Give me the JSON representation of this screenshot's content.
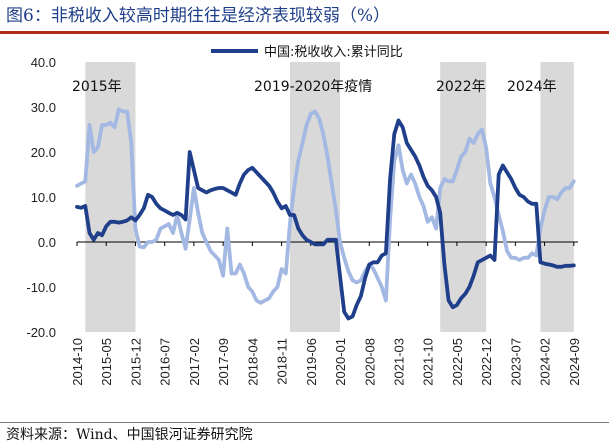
{
  "title": "图6：非税收入较高时期往往是经济表现较弱（%）",
  "source": "资料来源：Wind、中国银河证券研究院",
  "colors": {
    "title": "#1f3f8a",
    "title_rule": "#b02a20",
    "shade": "#d9d9d9",
    "dark_series": "#1f3f8a",
    "light_series": "#a3b8e2",
    "zero_line": "#000000"
  },
  "chart_data": {
    "type": "line",
    "ylim": [
      -20,
      40
    ],
    "yticks": [
      "-20.0",
      "-10.0",
      "0.0",
      "10.0",
      "20.0",
      "30.0",
      "40.0"
    ],
    "xlim": [
      "2014-10",
      "2024-10"
    ],
    "xticks": [
      "2014-10",
      "2015-05",
      "2015-12",
      "2016-07",
      "2017-02",
      "2017-09",
      "2018-04",
      "2018-11",
      "2019-06",
      "2020-01",
      "2020-08",
      "2021-03",
      "2021-10",
      "2022-05",
      "2022-12",
      "2023-07",
      "2024-02",
      "2024-09"
    ],
    "legend": {
      "position": "top",
      "entries": [
        "中国:税收收入:累计同比"
      ]
    },
    "shaded_periods": [
      {
        "label": "2015年",
        "start": "2014-12",
        "end": "2015-12"
      },
      {
        "label": "2019-2020年疫情",
        "start": "2019-01",
        "end": "2020-01"
      },
      {
        "label": "2022年",
        "start": "2022-01",
        "end": "2022-12"
      },
      {
        "label": "2024年",
        "start": "2024-01",
        "end": "2024-09"
      }
    ],
    "series": [
      {
        "name": "中国:税收收入:累计同比",
        "style": "dark-thick",
        "points": [
          [
            "2014-10",
            7.8
          ],
          [
            "2014-11",
            7.6
          ],
          [
            "2014-12",
            8.0
          ],
          [
            "2015-01",
            2.0
          ],
          [
            "2015-02",
            0.5
          ],
          [
            "2015-03",
            2.0
          ],
          [
            "2015-04",
            1.5
          ],
          [
            "2015-05",
            3.5
          ],
          [
            "2015-06",
            4.5
          ],
          [
            "2015-07",
            4.5
          ],
          [
            "2015-08",
            4.3
          ],
          [
            "2015-09",
            4.5
          ],
          [
            "2015-10",
            4.8
          ],
          [
            "2015-11",
            5.5
          ],
          [
            "2015-12",
            4.8
          ],
          [
            "2016-01",
            6.0
          ],
          [
            "2016-02",
            7.5
          ],
          [
            "2016-03",
            10.5
          ],
          [
            "2016-04",
            10.0
          ],
          [
            "2016-05",
            8.5
          ],
          [
            "2016-06",
            7.5
          ],
          [
            "2016-07",
            7.0
          ],
          [
            "2016-08",
            6.5
          ],
          [
            "2016-09",
            6.0
          ],
          [
            "2016-10",
            6.5
          ],
          [
            "2016-11",
            6.0
          ],
          [
            "2016-12",
            5.0
          ],
          [
            "2017-01",
            20.0
          ],
          [
            "2017-02",
            16.0
          ],
          [
            "2017-03",
            12.0
          ],
          [
            "2017-04",
            11.5
          ],
          [
            "2017-05",
            11.0
          ],
          [
            "2017-06",
            11.5
          ],
          [
            "2017-07",
            11.8
          ],
          [
            "2017-08",
            12.0
          ],
          [
            "2017-09",
            12.0
          ],
          [
            "2017-10",
            11.5
          ],
          [
            "2017-11",
            11.0
          ],
          [
            "2017-12",
            10.5
          ],
          [
            "2018-01",
            13.0
          ],
          [
            "2018-02",
            15.0
          ],
          [
            "2018-03",
            16.0
          ],
          [
            "2018-04",
            16.5
          ],
          [
            "2018-05",
            15.5
          ],
          [
            "2018-06",
            14.5
          ],
          [
            "2018-07",
            13.5
          ],
          [
            "2018-08",
            12.5
          ],
          [
            "2018-09",
            11.0
          ],
          [
            "2018-10",
            9.0
          ],
          [
            "2018-11",
            7.5
          ],
          [
            "2018-12",
            8.0
          ],
          [
            "2019-01",
            6.0
          ],
          [
            "2019-02",
            6.0
          ],
          [
            "2019-03",
            3.0
          ],
          [
            "2019-04",
            1.5
          ],
          [
            "2019-05",
            0.5
          ],
          [
            "2019-06",
            0.0
          ],
          [
            "2019-07",
            -0.5
          ],
          [
            "2019-08",
            -0.5
          ],
          [
            "2019-09",
            -0.5
          ],
          [
            "2019-10",
            0.5
          ],
          [
            "2019-11",
            0.5
          ],
          [
            "2019-12",
            0.5
          ],
          [
            "2020-01",
            -7.5
          ],
          [
            "2020-02",
            -15.5
          ],
          [
            "2020-03",
            -17.0
          ],
          [
            "2020-04",
            -16.5
          ],
          [
            "2020-05",
            -14.0
          ],
          [
            "2020-06",
            -12.0
          ],
          [
            "2020-07",
            -8.0
          ],
          [
            "2020-08",
            -5.0
          ],
          [
            "2020-09",
            -4.5
          ],
          [
            "2020-10",
            -4.5
          ],
          [
            "2020-11",
            -3.0
          ],
          [
            "2020-12",
            -2.5
          ],
          [
            "2021-01",
            14.0
          ],
          [
            "2021-02",
            24.0
          ],
          [
            "2021-03",
            27.0
          ],
          [
            "2021-04",
            25.5
          ],
          [
            "2021-05",
            22.0
          ],
          [
            "2021-06",
            20.5
          ],
          [
            "2021-07",
            19.0
          ],
          [
            "2021-08",
            17.0
          ],
          [
            "2021-09",
            14.5
          ],
          [
            "2021-10",
            12.5
          ],
          [
            "2021-11",
            11.5
          ],
          [
            "2021-12",
            10.0
          ],
          [
            "2022-01",
            6.5
          ],
          [
            "2022-02",
            -5.0
          ],
          [
            "2022-03",
            -13.0
          ],
          [
            "2022-04",
            -14.5
          ],
          [
            "2022-05",
            -14.0
          ],
          [
            "2022-06",
            -12.5
          ],
          [
            "2022-07",
            -11.5
          ],
          [
            "2022-08",
            -10.0
          ],
          [
            "2022-09",
            -7.5
          ],
          [
            "2022-10",
            -4.5
          ],
          [
            "2022-11",
            -4.0
          ],
          [
            "2022-12",
            -3.5
          ],
          [
            "2023-01",
            -3.0
          ],
          [
            "2023-02",
            -4.0
          ],
          [
            "2023-03",
            15.0
          ],
          [
            "2023-04",
            17.0
          ],
          [
            "2023-05",
            15.5
          ],
          [
            "2023-06",
            14.0
          ],
          [
            "2023-07",
            12.0
          ],
          [
            "2023-08",
            10.5
          ],
          [
            "2023-09",
            10.0
          ],
          [
            "2023-10",
            9.0
          ],
          [
            "2023-11",
            8.5
          ],
          [
            "2023-12",
            8.5
          ],
          [
            "2024-01",
            -4.5
          ],
          [
            "2024-02",
            -4.8
          ],
          [
            "2024-03",
            -5.0
          ],
          [
            "2024-04",
            -5.2
          ],
          [
            "2024-05",
            -5.5
          ],
          [
            "2024-06",
            -5.5
          ],
          [
            "2024-07",
            -5.3
          ],
          [
            "2024-08",
            -5.3
          ],
          [
            "2024-09",
            -5.2
          ]
        ]
      },
      {
        "name": "",
        "style": "light-thick",
        "points": [
          [
            "2014-10",
            12.5
          ],
          [
            "2014-11",
            13.0
          ],
          [
            "2014-12",
            13.5
          ],
          [
            "2015-01",
            26.0
          ],
          [
            "2015-02",
            20.0
          ],
          [
            "2015-03",
            21.0
          ],
          [
            "2015-04",
            26.0
          ],
          [
            "2015-05",
            26.0
          ],
          [
            "2015-06",
            26.5
          ],
          [
            "2015-07",
            25.5
          ],
          [
            "2015-08",
            29.5
          ],
          [
            "2015-09",
            29.0
          ],
          [
            "2015-10",
            29.0
          ],
          [
            "2015-11",
            22.0
          ],
          [
            "2015-12",
            3.0
          ],
          [
            "2016-01",
            -1.0
          ],
          [
            "2016-02",
            -1.2
          ],
          [
            "2016-03",
            0.0
          ],
          [
            "2016-04",
            0.0
          ],
          [
            "2016-05",
            0.5
          ],
          [
            "2016-06",
            3.0
          ],
          [
            "2016-07",
            3.5
          ],
          [
            "2016-08",
            4.0
          ],
          [
            "2016-09",
            2.0
          ],
          [
            "2016-10",
            6.0
          ],
          [
            "2016-11",
            2.0
          ],
          [
            "2016-12",
            -1.5
          ],
          [
            "2017-01",
            5.0
          ],
          [
            "2017-02",
            12.0
          ],
          [
            "2017-03",
            6.5
          ],
          [
            "2017-04",
            2.0
          ],
          [
            "2017-05",
            0.0
          ],
          [
            "2017-06",
            -2.0
          ],
          [
            "2017-07",
            -3.0
          ],
          [
            "2017-08",
            -4.0
          ],
          [
            "2017-09",
            -7.5
          ],
          [
            "2017-10",
            3.0
          ],
          [
            "2017-11",
            -7.0
          ],
          [
            "2017-12",
            -7.0
          ],
          [
            "2018-01",
            -5.0
          ],
          [
            "2018-02",
            -7.0
          ],
          [
            "2018-03",
            -10.0
          ],
          [
            "2018-04",
            -11.0
          ],
          [
            "2018-05",
            -13.0
          ],
          [
            "2018-06",
            -13.5
          ],
          [
            "2018-07",
            -13.0
          ],
          [
            "2018-08",
            -12.5
          ],
          [
            "2018-09",
            -11.0
          ],
          [
            "2018-10",
            -10.0
          ],
          [
            "2018-11",
            -6.0
          ],
          [
            "2018-12",
            -7.0
          ],
          [
            "2019-01",
            4.0
          ],
          [
            "2019-02",
            12.0
          ],
          [
            "2019-03",
            18.0
          ],
          [
            "2019-04",
            22.0
          ],
          [
            "2019-05",
            26.0
          ],
          [
            "2019-06",
            28.5
          ],
          [
            "2019-07",
            29.0
          ],
          [
            "2019-08",
            27.5
          ],
          [
            "2019-09",
            24.0
          ],
          [
            "2019-10",
            19.0
          ],
          [
            "2019-11",
            13.0
          ],
          [
            "2019-12",
            7.0
          ],
          [
            "2020-01",
            0.0
          ],
          [
            "2020-02",
            -3.5
          ],
          [
            "2020-03",
            -6.5
          ],
          [
            "2020-04",
            -8.5
          ],
          [
            "2020-05",
            -9.0
          ],
          [
            "2020-06",
            -8.5
          ],
          [
            "2020-07",
            -6.5
          ],
          [
            "2020-08",
            -5.0
          ],
          [
            "2020-09",
            -6.0
          ],
          [
            "2020-10",
            -8.0
          ],
          [
            "2020-11",
            -10.0
          ],
          [
            "2020-12",
            -13.0
          ],
          [
            "2021-01",
            5.0
          ],
          [
            "2021-02",
            18.0
          ],
          [
            "2021-03",
            21.5
          ],
          [
            "2021-04",
            16.0
          ],
          [
            "2021-05",
            13.0
          ],
          [
            "2021-06",
            15.0
          ],
          [
            "2021-07",
            13.0
          ],
          [
            "2021-08",
            10.0
          ],
          [
            "2021-09",
            8.0
          ],
          [
            "2021-10",
            4.5
          ],
          [
            "2021-11",
            5.5
          ],
          [
            "2021-12",
            3.0
          ],
          [
            "2022-01",
            12.0
          ],
          [
            "2022-02",
            14.0
          ],
          [
            "2022-03",
            13.5
          ],
          [
            "2022-04",
            13.5
          ],
          [
            "2022-05",
            16.0
          ],
          [
            "2022-06",
            19.0
          ],
          [
            "2022-07",
            20.0
          ],
          [
            "2022-08",
            23.0
          ],
          [
            "2022-09",
            22.0
          ],
          [
            "2022-10",
            24.0
          ],
          [
            "2022-11",
            25.0
          ],
          [
            "2022-12",
            21.0
          ],
          [
            "2023-01",
            13.0
          ],
          [
            "2023-02",
            10.0
          ],
          [
            "2023-03",
            6.0
          ],
          [
            "2023-04",
            2.5
          ],
          [
            "2023-05",
            -2.0
          ],
          [
            "2023-06",
            -3.5
          ],
          [
            "2023-07",
            -3.5
          ],
          [
            "2023-08",
            -4.0
          ],
          [
            "2023-09",
            -3.5
          ],
          [
            "2023-10",
            -3.5
          ],
          [
            "2023-11",
            -2.5
          ],
          [
            "2023-12",
            -3.0
          ],
          [
            "2024-01",
            3.0
          ],
          [
            "2024-02",
            7.0
          ],
          [
            "2024-03",
            10.0
          ],
          [
            "2024-04",
            10.0
          ],
          [
            "2024-05",
            9.5
          ],
          [
            "2024-06",
            11.0
          ],
          [
            "2024-07",
            12.0
          ],
          [
            "2024-08",
            12.0
          ],
          [
            "2024-09",
            13.5
          ]
        ]
      }
    ]
  }
}
